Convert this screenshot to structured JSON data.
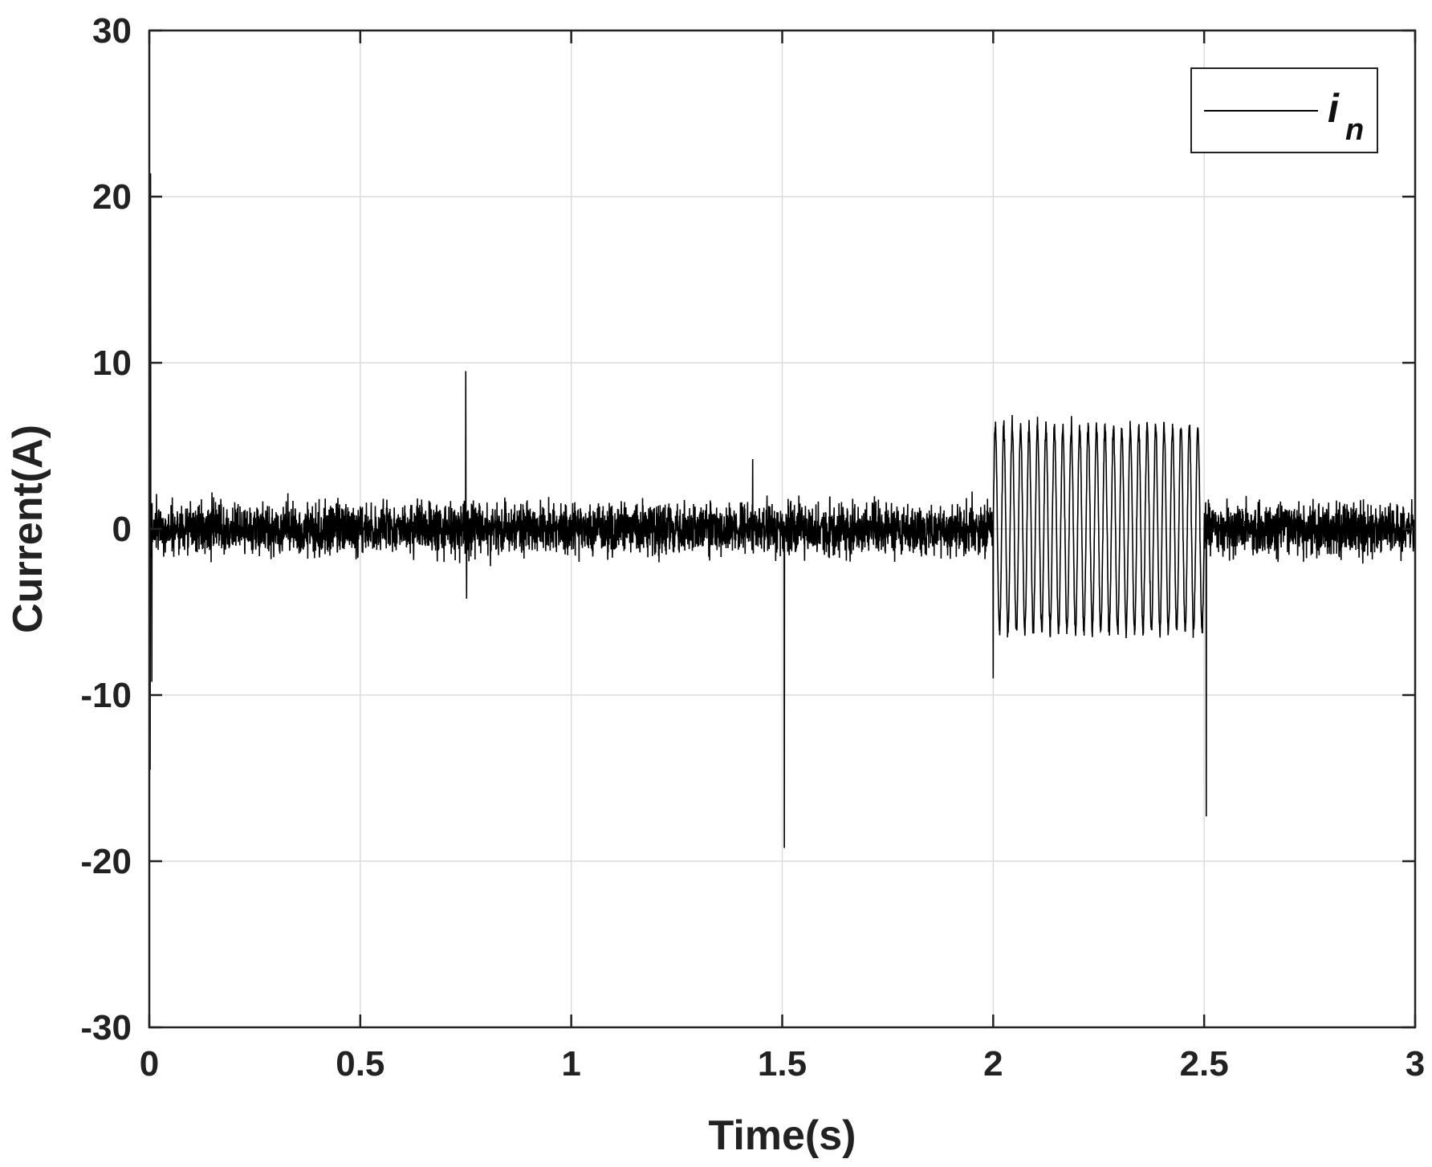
{
  "chart_data": {
    "type": "line",
    "xlabel": "Time(s)",
    "ylabel": "Current(A)",
    "xlim": [
      0,
      3
    ],
    "ylim": [
      -30,
      30
    ],
    "xticks": [
      "0",
      "0.5",
      "1",
      "1.5",
      "2",
      "2.5",
      "3"
    ],
    "yticks": [
      "30",
      "20",
      "10",
      "0",
      "-10",
      "-20",
      "-30"
    ],
    "grid": true,
    "legend": {
      "position": "top-right",
      "entries": [
        {
          "main": "i",
          "sub": "n"
        }
      ]
    },
    "series": [
      {
        "name": "i_n",
        "color": "#000000",
        "baseline_noise_amplitude": 2.0,
        "oscillation": {
          "start": 2.0,
          "end": 2.5,
          "amplitude": 6.2,
          "cycles": 25
        },
        "spikes": [
          {
            "x": 0.003,
            "y": 21.4
          },
          {
            "x": 0.002,
            "y": -14.5
          },
          {
            "x": 0.006,
            "y": -9.2
          },
          {
            "x": 0.75,
            "y": 9.5
          },
          {
            "x": 0.752,
            "y": -4.2
          },
          {
            "x": 1.43,
            "y": 4.2
          },
          {
            "x": 1.505,
            "y": -19.2
          },
          {
            "x": 2.0,
            "y": -9.0
          },
          {
            "x": 2.505,
            "y": -17.3
          }
        ]
      }
    ]
  }
}
